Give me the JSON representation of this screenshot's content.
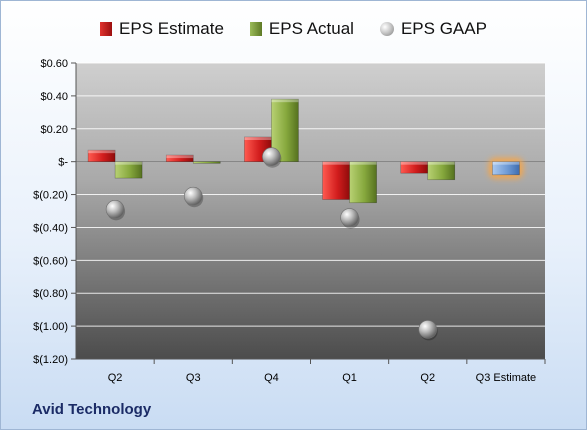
{
  "colors": {
    "estimate": "#c0262a",
    "actual": "#7c9b3a",
    "gaap": "#b0b0b0",
    "next_estimate": "#6f9bd6",
    "next_estimate_glow": "#f4a64c"
  },
  "company_name": "Avid Technology",
  "chart_data": {
    "type": "bar",
    "title": "",
    "xlabel": "",
    "ylabel": "",
    "categories": [
      "Q2",
      "Q3",
      "Q4",
      "Q1",
      "Q2",
      "Q3 Estimate"
    ],
    "series": [
      {
        "name": "EPS Estimate",
        "kind": "bar",
        "values": [
          0.07,
          0.04,
          0.15,
          -0.23,
          -0.07,
          -0.08
        ]
      },
      {
        "name": "EPS Actual",
        "kind": "bar",
        "values": [
          -0.1,
          -0.01,
          0.38,
          -0.25,
          -0.11,
          null
        ]
      },
      {
        "name": "EPS GAAP",
        "kind": "marker",
        "values": [
          -0.29,
          -0.21,
          0.03,
          -0.34,
          -1.02,
          null
        ]
      }
    ],
    "highlight": {
      "category": "Q3 Estimate",
      "series": "EPS Estimate"
    },
    "y_ticks": [
      0.6,
      0.4,
      0.2,
      0.0,
      -0.2,
      -0.4,
      -0.6,
      -0.8,
      -1.0,
      -1.2
    ],
    "y_tick_labels": [
      "$0.60",
      "$0.40",
      "$0.20",
      "$-",
      "$(0.20)",
      "$(0.40)",
      "$(0.60)",
      "$(0.80)",
      "$(1.00)",
      "$(1.20)"
    ],
    "ylim": [
      -1.2,
      0.6
    ],
    "grid": true,
    "legend_position": "top"
  }
}
